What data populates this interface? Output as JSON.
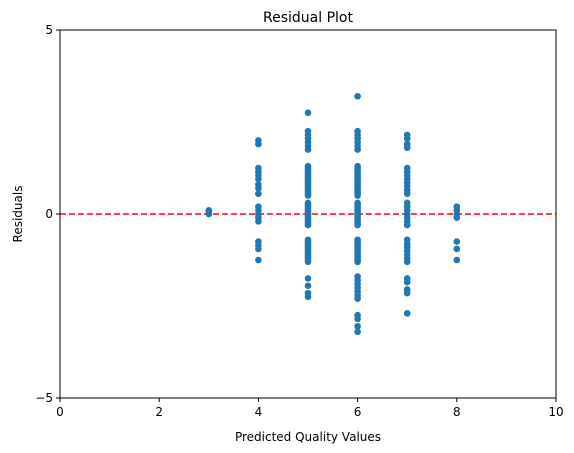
{
  "chart_data": {
    "type": "scatter",
    "title": "Residual Plot",
    "xlabel": "Predicted Quality Values",
    "ylabel": "Residuals",
    "xlim": [
      0,
      10
    ],
    "ylim": [
      -5,
      5
    ],
    "xticks": [
      0,
      2,
      4,
      6,
      8,
      10
    ],
    "yticks": [
      -5,
      0,
      5
    ],
    "xtick_labels": [
      "0",
      "2",
      "4",
      "6",
      "8",
      "10"
    ],
    "ytick_labels": [
      "−5",
      "0",
      "5"
    ],
    "grid": false,
    "legend": "none",
    "point_color": "#1f77b4",
    "reference_line": {
      "y": 0,
      "color": "#ff0000",
      "style": "dashed"
    },
    "points": [
      {
        "x": 3,
        "y": 0.1
      },
      {
        "x": 3,
        "y": 0.05
      },
      {
        "x": 3,
        "y": 0.0
      },
      {
        "x": 4,
        "y": 2.0
      },
      {
        "x": 4,
        "y": 1.9
      },
      {
        "x": 4,
        "y": 1.25
      },
      {
        "x": 4,
        "y": 1.15
      },
      {
        "x": 4,
        "y": 1.05
      },
      {
        "x": 4,
        "y": 0.95
      },
      {
        "x": 4,
        "y": 0.8
      },
      {
        "x": 4,
        "y": 0.7
      },
      {
        "x": 4,
        "y": 0.55
      },
      {
        "x": 4,
        "y": 0.2
      },
      {
        "x": 4,
        "y": 0.1
      },
      {
        "x": 4,
        "y": 0.0
      },
      {
        "x": 4,
        "y": -0.1
      },
      {
        "x": 4,
        "y": -0.2
      },
      {
        "x": 4,
        "y": -0.75
      },
      {
        "x": 4,
        "y": -0.85
      },
      {
        "x": 4,
        "y": -0.95
      },
      {
        "x": 4,
        "y": -1.25
      },
      {
        "x": 5,
        "y": 2.75
      },
      {
        "x": 5,
        "y": 2.25
      },
      {
        "x": 5,
        "y": 2.15
      },
      {
        "x": 5,
        "y": 2.05
      },
      {
        "x": 5,
        "y": 1.95
      },
      {
        "x": 5,
        "y": 1.85
      },
      {
        "x": 5,
        "y": 1.75
      },
      {
        "x": 5,
        "y": 1.3
      },
      {
        "x": 5,
        "y": 1.25
      },
      {
        "x": 5,
        "y": 1.2
      },
      {
        "x": 5,
        "y": 1.15
      },
      {
        "x": 5,
        "y": 1.1
      },
      {
        "x": 5,
        "y": 1.05
      },
      {
        "x": 5,
        "y": 1.0
      },
      {
        "x": 5,
        "y": 0.95
      },
      {
        "x": 5,
        "y": 0.9
      },
      {
        "x": 5,
        "y": 0.85
      },
      {
        "x": 5,
        "y": 0.8
      },
      {
        "x": 5,
        "y": 0.75
      },
      {
        "x": 5,
        "y": 0.7
      },
      {
        "x": 5,
        "y": 0.65
      },
      {
        "x": 5,
        "y": 0.6
      },
      {
        "x": 5,
        "y": 0.55
      },
      {
        "x": 5,
        "y": 0.5
      },
      {
        "x": 5,
        "y": 0.3
      },
      {
        "x": 5,
        "y": 0.25
      },
      {
        "x": 5,
        "y": 0.2
      },
      {
        "x": 5,
        "y": 0.15
      },
      {
        "x": 5,
        "y": 0.1
      },
      {
        "x": 5,
        "y": 0.05
      },
      {
        "x": 5,
        "y": 0.0
      },
      {
        "x": 5,
        "y": -0.05
      },
      {
        "x": 5,
        "y": -0.1
      },
      {
        "x": 5,
        "y": -0.15
      },
      {
        "x": 5,
        "y": -0.2
      },
      {
        "x": 5,
        "y": -0.25
      },
      {
        "x": 5,
        "y": -0.3
      },
      {
        "x": 5,
        "y": -0.7
      },
      {
        "x": 5,
        "y": -0.75
      },
      {
        "x": 5,
        "y": -0.8
      },
      {
        "x": 5,
        "y": -0.85
      },
      {
        "x": 5,
        "y": -0.9
      },
      {
        "x": 5,
        "y": -0.95
      },
      {
        "x": 5,
        "y": -1.0
      },
      {
        "x": 5,
        "y": -1.05
      },
      {
        "x": 5,
        "y": -1.1
      },
      {
        "x": 5,
        "y": -1.15
      },
      {
        "x": 5,
        "y": -1.2
      },
      {
        "x": 5,
        "y": -1.25
      },
      {
        "x": 5,
        "y": -1.3
      },
      {
        "x": 5,
        "y": -1.75
      },
      {
        "x": 5,
        "y": -1.95
      },
      {
        "x": 5,
        "y": -2.15
      },
      {
        "x": 5,
        "y": -2.25
      },
      {
        "x": 6,
        "y": 3.2
      },
      {
        "x": 6,
        "y": 2.25
      },
      {
        "x": 6,
        "y": 2.15
      },
      {
        "x": 6,
        "y": 2.05
      },
      {
        "x": 6,
        "y": 1.95
      },
      {
        "x": 6,
        "y": 1.85
      },
      {
        "x": 6,
        "y": 1.75
      },
      {
        "x": 6,
        "y": 1.3
      },
      {
        "x": 6,
        "y": 1.25
      },
      {
        "x": 6,
        "y": 1.2
      },
      {
        "x": 6,
        "y": 1.15
      },
      {
        "x": 6,
        "y": 1.1
      },
      {
        "x": 6,
        "y": 1.05
      },
      {
        "x": 6,
        "y": 1.0
      },
      {
        "x": 6,
        "y": 0.95
      },
      {
        "x": 6,
        "y": 0.9
      },
      {
        "x": 6,
        "y": 0.85
      },
      {
        "x": 6,
        "y": 0.8
      },
      {
        "x": 6,
        "y": 0.75
      },
      {
        "x": 6,
        "y": 0.7
      },
      {
        "x": 6,
        "y": 0.65
      },
      {
        "x": 6,
        "y": 0.6
      },
      {
        "x": 6,
        "y": 0.55
      },
      {
        "x": 6,
        "y": 0.5
      },
      {
        "x": 6,
        "y": 0.3
      },
      {
        "x": 6,
        "y": 0.25
      },
      {
        "x": 6,
        "y": 0.2
      },
      {
        "x": 6,
        "y": 0.15
      },
      {
        "x": 6,
        "y": 0.1
      },
      {
        "x": 6,
        "y": 0.05
      },
      {
        "x": 6,
        "y": 0.0
      },
      {
        "x": 6,
        "y": -0.05
      },
      {
        "x": 6,
        "y": -0.1
      },
      {
        "x": 6,
        "y": -0.15
      },
      {
        "x": 6,
        "y": -0.2
      },
      {
        "x": 6,
        "y": -0.25
      },
      {
        "x": 6,
        "y": -0.3
      },
      {
        "x": 6,
        "y": -0.7
      },
      {
        "x": 6,
        "y": -0.75
      },
      {
        "x": 6,
        "y": -0.8
      },
      {
        "x": 6,
        "y": -0.85
      },
      {
        "x": 6,
        "y": -0.9
      },
      {
        "x": 6,
        "y": -0.95
      },
      {
        "x": 6,
        "y": -1.0
      },
      {
        "x": 6,
        "y": -1.05
      },
      {
        "x": 6,
        "y": -1.1
      },
      {
        "x": 6,
        "y": -1.15
      },
      {
        "x": 6,
        "y": -1.2
      },
      {
        "x": 6,
        "y": -1.25
      },
      {
        "x": 6,
        "y": -1.3
      },
      {
        "x": 6,
        "y": -1.7
      },
      {
        "x": 6,
        "y": -1.8
      },
      {
        "x": 6,
        "y": -1.9
      },
      {
        "x": 6,
        "y": -2.0
      },
      {
        "x": 6,
        "y": -2.1
      },
      {
        "x": 6,
        "y": -2.2
      },
      {
        "x": 6,
        "y": -2.3
      },
      {
        "x": 6,
        "y": -2.75
      },
      {
        "x": 6,
        "y": -2.85
      },
      {
        "x": 6,
        "y": -3.05
      },
      {
        "x": 6,
        "y": -3.2
      },
      {
        "x": 7,
        "y": 2.15
      },
      {
        "x": 7,
        "y": 2.05
      },
      {
        "x": 7,
        "y": 1.9
      },
      {
        "x": 7,
        "y": 1.8
      },
      {
        "x": 7,
        "y": 1.25
      },
      {
        "x": 7,
        "y": 1.15
      },
      {
        "x": 7,
        "y": 1.05
      },
      {
        "x": 7,
        "y": 0.95
      },
      {
        "x": 7,
        "y": 0.85
      },
      {
        "x": 7,
        "y": 0.75
      },
      {
        "x": 7,
        "y": 0.65
      },
      {
        "x": 7,
        "y": 0.55
      },
      {
        "x": 7,
        "y": 0.3
      },
      {
        "x": 7,
        "y": 0.2
      },
      {
        "x": 7,
        "y": 0.1
      },
      {
        "x": 7,
        "y": 0.0
      },
      {
        "x": 7,
        "y": -0.1
      },
      {
        "x": 7,
        "y": -0.2
      },
      {
        "x": 7,
        "y": -0.3
      },
      {
        "x": 7,
        "y": -0.7
      },
      {
        "x": 7,
        "y": -0.8
      },
      {
        "x": 7,
        "y": -0.9
      },
      {
        "x": 7,
        "y": -1.0
      },
      {
        "x": 7,
        "y": -1.1
      },
      {
        "x": 7,
        "y": -1.2
      },
      {
        "x": 7,
        "y": -1.3
      },
      {
        "x": 7,
        "y": -1.75
      },
      {
        "x": 7,
        "y": -1.85
      },
      {
        "x": 7,
        "y": -2.05
      },
      {
        "x": 7,
        "y": -2.15
      },
      {
        "x": 7,
        "y": -2.7
      },
      {
        "x": 8,
        "y": 0.2
      },
      {
        "x": 8,
        "y": 0.1
      },
      {
        "x": 8,
        "y": 0.0
      },
      {
        "x": 8,
        "y": -0.1
      },
      {
        "x": 8,
        "y": -0.75
      },
      {
        "x": 8,
        "y": -0.95
      },
      {
        "x": 8,
        "y": -1.25
      }
    ]
  }
}
